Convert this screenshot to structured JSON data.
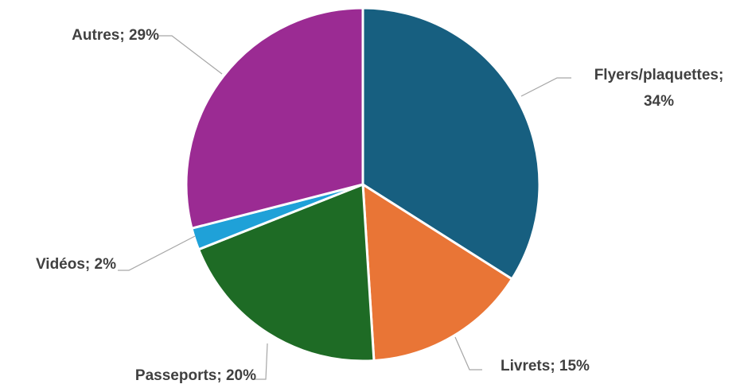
{
  "chart_data": {
    "type": "pie",
    "categories": [
      "Flyers/plaquettes",
      "Livrets",
      "Passeports",
      "Vidéos",
      "Autres"
    ],
    "values": [
      34,
      15,
      20,
      2,
      29
    ],
    "value_labels": [
      "Flyers/plaquettes; 34%",
      "Livrets; 15%",
      "Passeports; 20%",
      "Vidéos; 2%",
      "Autres; 29%"
    ],
    "colors": [
      "#175f80",
      "#e97536",
      "#1e6b25",
      "#1fa1d8",
      "#9b2b93"
    ]
  }
}
